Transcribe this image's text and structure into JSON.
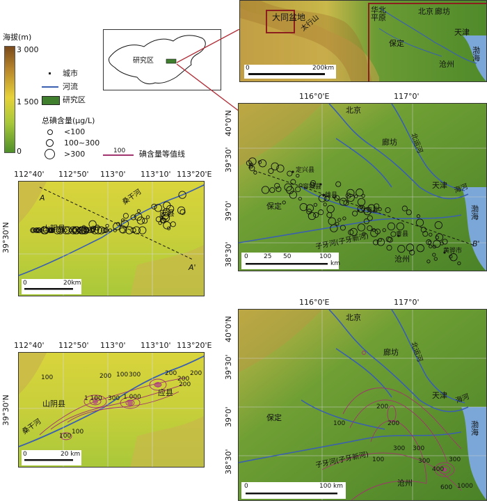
{
  "legend": {
    "elevation_title": "海拔(m)",
    "elev_ticks": [
      "3 000",
      "1 500",
      "0"
    ],
    "city": "城市",
    "river": "河流",
    "study_area": "研究区",
    "iodine_title": "总碘含量(μg/L)",
    "bins": [
      "<100",
      "100~300",
      ">300"
    ],
    "contour_value": "100",
    "contour_label": "碘含量等值线",
    "colors": {
      "river": "#3a5fb0",
      "study_area": "#3f7f2e",
      "contour": "#a0336e",
      "ocean": "#7aa7d8"
    }
  },
  "inset": {
    "label": "研究区"
  },
  "regional": {
    "basin_label": "大同盆地",
    "mountain": "太行山",
    "plain": "华北平原",
    "cities": [
      "北京",
      "廊坊",
      "天津",
      "保定",
      "沧州"
    ],
    "sea": "渤海",
    "scale": [
      "0",
      "200km"
    ]
  },
  "datong": {
    "lon_ticks": [
      "112°40'",
      "112°50'",
      "113°0'",
      "113°10'",
      "113°20'E"
    ],
    "lat_tick": "39°30'N",
    "river": "桑干河",
    "counties": [
      "山阴县",
      "应县"
    ],
    "profile": [
      "A",
      "A'"
    ],
    "scale_top": [
      "0",
      "20km"
    ],
    "scale_bottom": [
      "0",
      "20 km"
    ],
    "contour_labels": [
      "100",
      "200",
      "300",
      "100",
      "200",
      "200",
      "1 100",
      "300",
      "1 000",
      "200",
      "100",
      "200",
      "100"
    ]
  },
  "ncp": {
    "lon_ticks": [
      "116°0'E",
      "117°0'"
    ],
    "lat_ticks": [
      "40°0'N",
      "39°30'",
      "39°0'",
      "38°30'"
    ],
    "cities": [
      "北京",
      "廊坊",
      "天津",
      "保定",
      "沧州",
      "定兴县",
      "容城县",
      "雄县",
      "文安县",
      "青县",
      "黄骅市"
    ],
    "rivers": [
      "北运河",
      "海河",
      "子牙河(子牙新河)"
    ],
    "sea": "渤海",
    "profile": [
      "B",
      "B'"
    ],
    "scale_top": [
      "0",
      "25",
      "50",
      "100",
      "km"
    ],
    "scale_bottom": [
      "0",
      "100 km"
    ],
    "contour_labels": [
      "200",
      "100",
      "200",
      "300",
      "300",
      "100",
      "300",
      "400",
      "600",
      "1000",
      "300"
    ]
  }
}
